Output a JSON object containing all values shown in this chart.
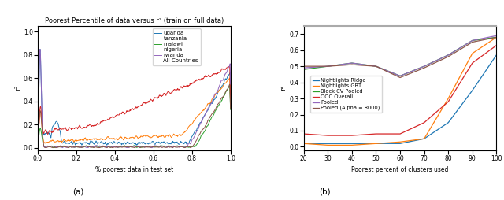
{
  "title_left": "Poorest Percentile of data versus r² (train on full data)",
  "xlabel_left": "% poorest data in test set",
  "ylabel_left": "r²",
  "xlabel_right": "Poorest percent of clusters used",
  "ylabel_right": "r²",
  "legend_left": [
    "uganda",
    "tanzania",
    "malawi",
    "nigeria",
    "rwanda",
    "All Countries"
  ],
  "colors_left": [
    "#1f77b4",
    "#ff7f0e",
    "#2ca02c",
    "#d62728",
    "#9467bd",
    "#8c564b"
  ],
  "legend_right": [
    "Nightlights Ridge",
    "Nightlights GBT",
    "Block CV Pooled",
    "OOC Overall",
    "Pooled",
    "Pooled (Alpha = 8000)"
  ],
  "colors_right": [
    "#1f77b4",
    "#ff7f0e",
    "#2ca02c",
    "#d62728",
    "#9467bd",
    "#8c564b"
  ],
  "right_x": [
    20,
    30,
    40,
    50,
    60,
    70,
    80,
    90,
    100
  ],
  "right_data": {
    "Nightlights Ridge": [
      0.02,
      0.02,
      0.02,
      0.02,
      0.02,
      0.05,
      0.15,
      0.35,
      0.57
    ],
    "Nightlights GBT": [
      0.02,
      0.01,
      0.01,
      0.02,
      0.03,
      0.05,
      0.3,
      0.58,
      0.68
    ],
    "Block CV Pooled": [
      0.48,
      0.5,
      0.52,
      0.5,
      0.44,
      0.5,
      0.57,
      0.66,
      0.68
    ],
    "OOC Overall": [
      0.08,
      0.07,
      0.07,
      0.08,
      0.08,
      0.15,
      0.28,
      0.52,
      0.63
    ],
    "Pooled": [
      0.49,
      0.5,
      0.52,
      0.5,
      0.44,
      0.5,
      0.57,
      0.66,
      0.69
    ],
    "Pooled (Alpha = 8000)": [
      0.5,
      0.5,
      0.51,
      0.5,
      0.43,
      0.49,
      0.56,
      0.65,
      0.68
    ]
  },
  "label_a": "(a)",
  "label_b": "(b)"
}
